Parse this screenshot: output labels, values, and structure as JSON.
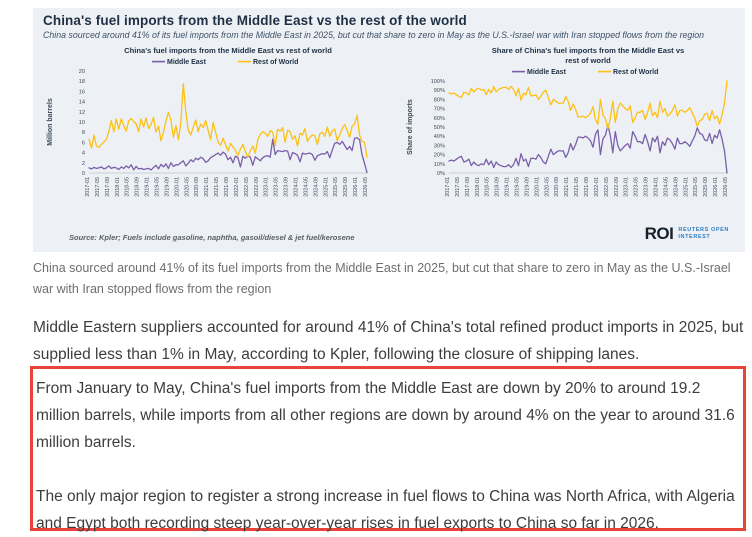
{
  "figure": {
    "title": "China's fuel imports from the Middle East vs the rest of the world",
    "subtitle": "China sourced around 41% of its fuel imports from the Middle East in 2025, but cut that share to zero in May as the U.S.-Israel war with Iran stopped flows from the region",
    "source": "Source:  Kpler; Fuels include gasoline, naphtha, gasoil/diesel & jet fuel/kerosene",
    "background": "#edf1f6",
    "logo": {
      "roi": "ROI",
      "line1": "REUTERS OPEN",
      "line2": "INTEREST",
      "blue": "#2e7dbe",
      "dark": "#15202b"
    }
  },
  "article": {
    "caption": "China sourced around 41% of its fuel imports from the Middle East in 2025, but cut that share to zero in May as the U.S.-Israel war with Iran stopped flows from the region",
    "p1": "Middle Eastern suppliers accounted for around 41% of China's total refined product imports in 2025, but supplied less than 1% in May, according to Kpler, following the closure of shipping lanes.",
    "highlight": {
      "p2": "From January to May, China's fuel imports from the Middle East are down by 20% to around 19.2 million barrels, while imports from all other regions are down by around 4% on the year to around 31.6 million barrels.",
      "p3": "The only major region to register a strong increase in fuel flows to China was North Africa, with Algeria and Egypt both recording steep year-over-year rises in fuel exports to China so far in 2026.",
      "border_color": "#e8443a"
    }
  },
  "chart_data": [
    {
      "type": "line",
      "title_lines": [
        "China's fuel imports from the Middle East vs rest of world"
      ],
      "ylabel": "Million barrels",
      "ylim": [
        0,
        20
      ],
      "ytick_step": 2,
      "ytick_suffix": "",
      "grid": false,
      "legend_position": "top",
      "x_start": "2017-01",
      "x_end": "2026-05",
      "xtick_every": 4,
      "xtick_labels": [
        "2017-01",
        "2017-05",
        "2017-09",
        "2018-01",
        "2018-05",
        "2018-09",
        "2019-01",
        "2019-05",
        "2019-09",
        "2020-01",
        "2020-05",
        "2020-09",
        "2021-01",
        "2021-05",
        "2021-09",
        "2022-01",
        "2022-05",
        "2022-09",
        "2023-01",
        "2023-05",
        "2023-09",
        "2024-01",
        "2024-05",
        "2024-09",
        "2025-01",
        "2025-05",
        "2025-09",
        "2026-01",
        "2026-05"
      ],
      "colors": {
        "Middle East": "#7a5fa8",
        "Rest of World": "#fdc013"
      },
      "series": [
        {
          "name": "Middle East",
          "values": [
            1.0,
            0.8,
            1.1,
            0.9,
            1.0,
            1.2,
            0.8,
            1.0,
            1.4,
            0.9,
            1.1,
            1.0,
            0.7,
            1.2,
            0.9,
            1.4,
            1.0,
            1.6,
            0.6,
            1.3,
            0.8,
            0.9,
            0.7,
            0.8,
            0.9,
            0.6,
            1.1,
            1.5,
            0.8,
            1.7,
            1.2,
            1.8,
            0.9,
            2.0,
            1.3,
            1.6,
            1.6,
            2.0,
            2.4,
            1.4,
            1.9,
            2.6,
            2.2,
            2.9,
            2.6,
            3.1,
            2.8,
            2.1,
            2.4,
            3.0,
            3.3,
            3.6,
            3.9,
            3.5,
            4.1,
            3.7,
            2.6,
            3.1,
            2.0,
            3.3,
            3.0,
            1.2,
            3.3,
            2.9,
            3.4,
            3.1,
            1.5,
            3.2,
            2.8,
            2.4,
            3.0,
            3.3,
            3.4,
            3.1,
            6.6,
            3.6,
            4.4,
            4.3,
            4.2,
            4.4,
            4.3,
            2.6,
            4.0,
            3.8,
            3.5,
            2.2,
            3.9,
            3.7,
            3.8,
            3.9,
            3.6,
            2.5,
            3.4,
            3.6,
            3.8,
            3.7,
            4.2,
            3.0,
            4.5,
            5.8,
            6.0,
            5.6,
            6.2,
            5.4,
            4.6,
            5.2,
            4.4,
            6.8,
            6.9,
            6.5,
            3.6,
            1.9,
            0.1
          ]
        },
        {
          "name": "Rest of World",
          "values": [
            6.6,
            4.9,
            7.4,
            5.3,
            5.0,
            5.6,
            6.1,
            6.6,
            8.2,
            10.3,
            8.1,
            10.6,
            8.6,
            10.6,
            9.2,
            8.2,
            10.2,
            10.7,
            10.1,
            9.6,
            8.1,
            10.6,
            9.0,
            10.8,
            8.7,
            9.5,
            10.9,
            8.0,
            9.2,
            6.3,
            8.0,
            10.2,
            11.9,
            10.4,
            7.0,
            9.3,
            6.5,
            9.8,
            17.5,
            12.0,
            8.4,
            7.5,
            9.0,
            10.4,
            8.1,
            9.6,
            8.9,
            10.3,
            8.4,
            6.5,
            9.9,
            8.0,
            6.1,
            5.4,
            6.8,
            5.6,
            4.3,
            5.8,
            5.1,
            4.5,
            3.4,
            4.7,
            5.6,
            4.2,
            3.1,
            4.4,
            5.3,
            3.9,
            6.5,
            7.6,
            8.1,
            7.8,
            7.2,
            8.3,
            8.0,
            5.4,
            8.6,
            8.2,
            8.9,
            6.0,
            8.4,
            8.1,
            6.6,
            7.3,
            5.3,
            7.8,
            7.5,
            8.7,
            6.2,
            7.0,
            7.5,
            7.3,
            5.6,
            7.7,
            8.0,
            7.2,
            9.0,
            7.2,
            8.3,
            8.6,
            6.3,
            7.5,
            8.7,
            9.5,
            8.4,
            7.0,
            9.2,
            9.6,
            11.3,
            7.4,
            6.2,
            6.0,
            3.1
          ]
        }
      ]
    },
    {
      "type": "line",
      "title_lines": [
        "Share of China's fuel imports from the Middle East vs",
        "rest of world"
      ],
      "ylabel": "Share of imports",
      "ylim": [
        0,
        100
      ],
      "ytick_step": 10,
      "ytick_suffix": "%",
      "grid": false,
      "legend_position": "top",
      "x_start": "2017-01",
      "x_end": "2026-05",
      "xtick_every": 4,
      "xtick_labels": [
        "2017-01",
        "2017-05",
        "2017-09",
        "2018-01",
        "2018-05",
        "2018-09",
        "2019-01",
        "2019-05",
        "2019-09",
        "2020-01",
        "2020-05",
        "2020-09",
        "2021-01",
        "2021-05",
        "2021-09",
        "2022-01",
        "2022-05",
        "2022-09",
        "2023-01",
        "2023-05",
        "2023-09",
        "2024-01",
        "2024-05",
        "2024-09",
        "2025-01",
        "2025-05",
        "2025-09",
        "2026-01",
        "2026-05"
      ],
      "colors": {
        "Middle East": "#7a5fa8",
        "Rest of World": "#fdc013"
      },
      "series": [
        {
          "name": "Middle East",
          "values": [
            13,
            14,
            13,
            15,
            17,
            18,
            12,
            13,
            15,
            8,
            12,
            9,
            8,
            10,
            9,
            15,
            9,
            13,
            6,
            12,
            9,
            8,
            7,
            7,
            9,
            6,
            9,
            16,
            8,
            21,
            13,
            15,
            7,
            16,
            16,
            15,
            20,
            17,
            12,
            10,
            18,
            26,
            20,
            22,
            24,
            24,
            24,
            17,
            22,
            32,
            25,
            31,
            39,
            39,
            38,
            40,
            38,
            35,
            28,
            42,
            47,
            20,
            37,
            41,
            52,
            41,
            22,
            45,
            30,
            24,
            27,
            30,
            32,
            27,
            45,
            40,
            34,
            34,
            32,
            42,
            34,
            24,
            38,
            34,
            40,
            22,
            34,
            30,
            38,
            36,
            32,
            26,
            38,
            32,
            32,
            34,
            32,
            29,
            35,
            40,
            49,
            43,
            42,
            36,
            35,
            43,
            32,
            41,
            38,
            47,
            37,
            24,
            0
          ]
        },
        {
          "name": "Rest of World",
          "values": [
            87,
            86,
            87,
            85,
            83,
            82,
            88,
            87,
            85,
            92,
            88,
            91,
            92,
            90,
            91,
            85,
            91,
            87,
            94,
            88,
            91,
            92,
            93,
            93,
            91,
            94,
            91,
            84,
            92,
            79,
            87,
            85,
            93,
            84,
            84,
            85,
            80,
            83,
            88,
            90,
            82,
            74,
            80,
            78,
            76,
            76,
            76,
            83,
            78,
            68,
            75,
            69,
            61,
            61,
            62,
            60,
            62,
            65,
            72,
            58,
            53,
            80,
            63,
            59,
            48,
            59,
            78,
            55,
            70,
            76,
            73,
            70,
            68,
            73,
            55,
            60,
            66,
            66,
            68,
            58,
            66,
            76,
            62,
            66,
            60,
            78,
            66,
            70,
            62,
            64,
            68,
            74,
            62,
            68,
            68,
            66,
            68,
            71,
            65,
            60,
            51,
            57,
            58,
            64,
            65,
            57,
            68,
            59,
            62,
            53,
            63,
            76,
            100
          ]
        }
      ]
    }
  ]
}
